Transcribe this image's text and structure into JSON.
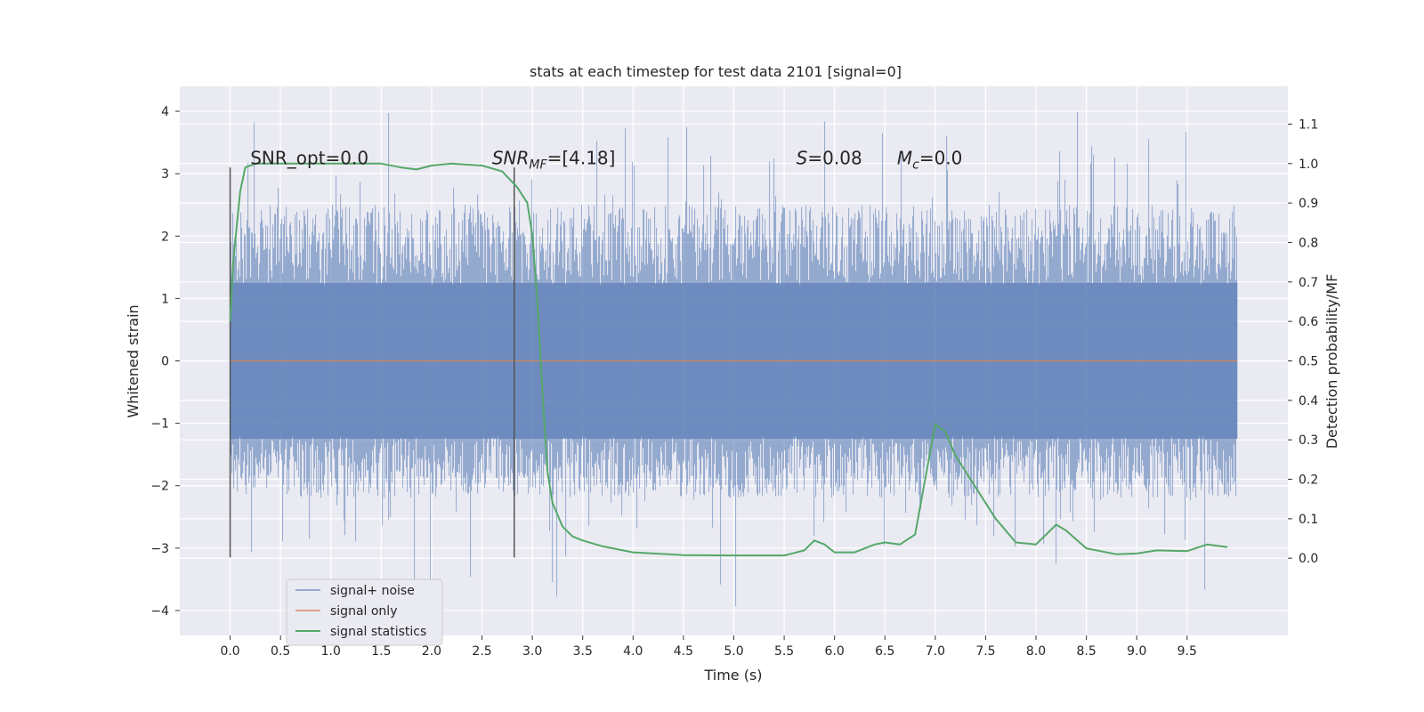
{
  "chart_data": {
    "type": "line",
    "title": "stats at each timestep for test data 2101 [signal=0]",
    "xlabel": "Time (s)",
    "ylabel_left": "Whitened strain",
    "ylabel_right": "Detection probability/MF",
    "xlim": [
      -0.5,
      10.5
    ],
    "ylim_left": [
      -4.4,
      4.4
    ],
    "ylim_right": [
      -0.1957,
      1.1957
    ],
    "x_ticks": [
      "0.0",
      "0.5",
      "1.0",
      "1.5",
      "2.0",
      "2.5",
      "3.0",
      "3.5",
      "4.0",
      "4.5",
      "5.0",
      "5.5",
      "6.0",
      "6.5",
      "7.0",
      "7.5",
      "8.0",
      "8.5",
      "9.0",
      "9.5"
    ],
    "y_left_ticks": [
      "4",
      "3",
      "2",
      "1",
      "0",
      "−1",
      "−2",
      "−3",
      "−4"
    ],
    "y_right_ticks": [
      "1.1",
      "1.0",
      "0.9",
      "0.8",
      "0.7",
      "0.6",
      "0.5",
      "0.4",
      "0.3",
      "0.2",
      "0.1",
      "0.0"
    ],
    "grid": true,
    "legend_position": "lower-left",
    "colors": {
      "background": "#eaeaf2",
      "grid": "#ffffff",
      "noise": "#4c72b0",
      "signal": "#dd8452",
      "stat": "#55a868",
      "marker": "#555555"
    },
    "series": [
      {
        "name": "signal+ noise",
        "color": "#4c72b0",
        "x_range": [
          0.0,
          10.0
        ],
        "typical_envelope": [
          -2.2,
          2.5
        ],
        "extremes": [
          -4.0,
          4.0
        ]
      },
      {
        "name": "signal only",
        "color": "#dd8452",
        "x": [
          0.0,
          10.0
        ],
        "y": [
          0.0,
          0.0
        ]
      },
      {
        "name": "signal statistics",
        "color": "#55a868",
        "axis": "right",
        "x": [
          0.0,
          0.03,
          0.1,
          0.15,
          0.25,
          0.5,
          1.0,
          1.5,
          1.7,
          1.85,
          2.0,
          2.2,
          2.5,
          2.7,
          2.85,
          2.95,
          3.0,
          3.05,
          3.1,
          3.15,
          3.2,
          3.3,
          3.4,
          3.5,
          3.7,
          4.0,
          4.5,
          5.0,
          5.5,
          5.7,
          5.8,
          5.9,
          6.0,
          6.2,
          6.4,
          6.5,
          6.65,
          6.8,
          6.9,
          7.0,
          7.1,
          7.2,
          7.4,
          7.6,
          7.8,
          8.0,
          8.1,
          8.2,
          8.3,
          8.5,
          8.8,
          9.0,
          9.2,
          9.5,
          9.7,
          9.9
        ],
        "y": [
          0.6,
          0.75,
          0.93,
          0.99,
          1.0,
          1.0,
          1.0,
          1.0,
          0.99,
          0.985,
          0.995,
          1.0,
          0.995,
          0.98,
          0.94,
          0.9,
          0.82,
          0.65,
          0.42,
          0.22,
          0.14,
          0.08,
          0.055,
          0.045,
          0.03,
          0.015,
          0.008,
          0.007,
          0.007,
          0.02,
          0.045,
          0.035,
          0.015,
          0.015,
          0.035,
          0.04,
          0.035,
          0.06,
          0.2,
          0.34,
          0.32,
          0.26,
          0.18,
          0.1,
          0.04,
          0.035,
          0.06,
          0.085,
          0.07,
          0.025,
          0.01,
          0.012,
          0.02,
          0.018,
          0.035,
          0.028
        ]
      }
    ],
    "vlines": [
      {
        "x": 0.0,
        "y_range": [
          -3.15,
          3.1
        ]
      },
      {
        "x": 2.82,
        "y_range": [
          -3.15,
          3.1
        ]
      }
    ],
    "annotations": [
      {
        "text": "SNR_opt=0.0",
        "x": 0.2,
        "y": 3.15
      },
      {
        "main": "SNR",
        "sub": "MF",
        "rest": "=[4.18]",
        "x": 2.6,
        "y": 3.15
      },
      {
        "main": "S",
        "sub": "",
        "rest": "=0.08",
        "x": 5.62,
        "y": 3.15
      },
      {
        "main": "M",
        "sub": "c",
        "rest": "=0.0",
        "x": 6.62,
        "y": 3.15
      }
    ]
  }
}
